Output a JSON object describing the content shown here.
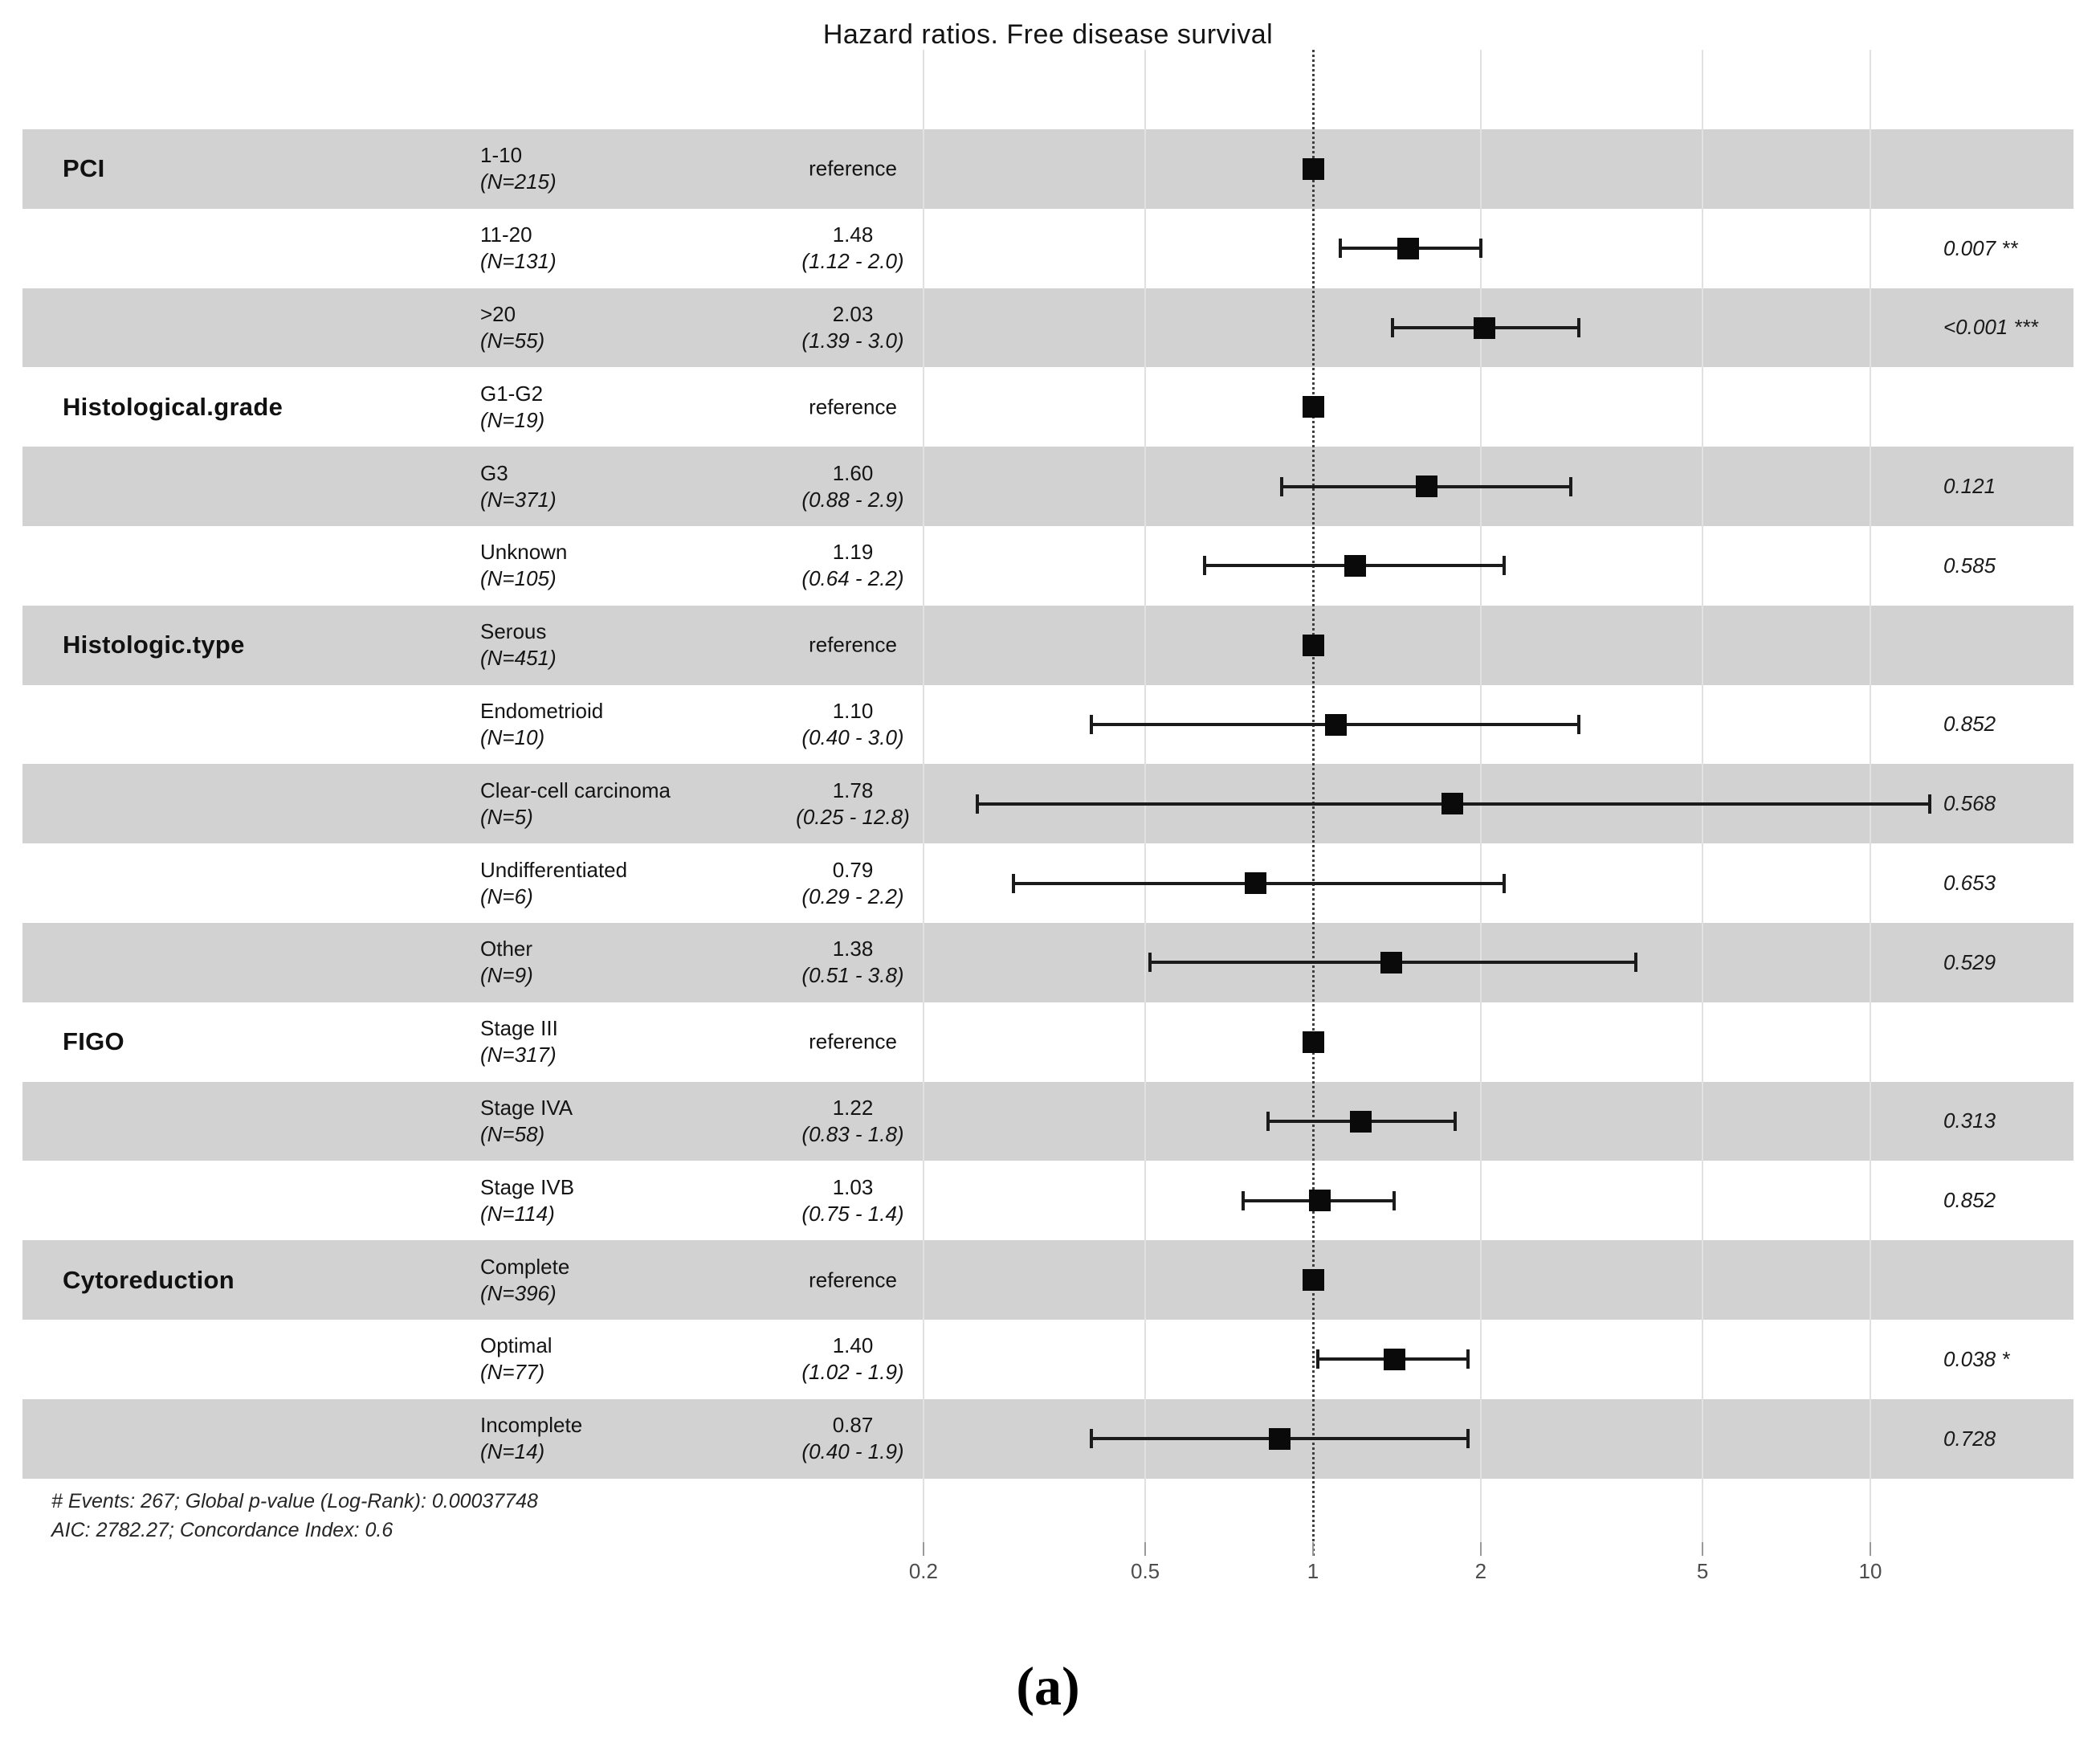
{
  "title": "Hazard ratios. Free disease survival",
  "caption": "(a)",
  "footer": {
    "line1": "# Events: 267; Global p-value (Log-Rank): 0.00037748",
    "line2": "AIC: 2782.27; Concordance Index: 0.6"
  },
  "axis": {
    "scale": "log10",
    "tick_values": [
      0.2,
      0.5,
      1,
      2,
      5,
      10
    ],
    "tick_labels": [
      "0.2",
      "0.5",
      "1",
      "2",
      "5",
      "10"
    ],
    "reference_line": 1
  },
  "colors": {
    "band_shade": "#d2d2d2",
    "marker": "#0a0a0a",
    "grid": "#e1e1e1",
    "reference_dotted": "#3f3f3f",
    "tick_text": "#4d4d4d",
    "text": "#141414"
  },
  "chart_data": {
    "type": "forest",
    "x_scale": "log10",
    "x_ticks": [
      0.2,
      0.5,
      1,
      2,
      5,
      10
    ],
    "reference_value": 1,
    "rows": [
      {
        "group": "PCI",
        "level": "1-10",
        "n": "(N=215)",
        "estimate": "reference",
        "ci_text": "",
        "hr": 1.0,
        "low": null,
        "high": null,
        "p": "",
        "shaded": true
      },
      {
        "group": "",
        "level": "11-20",
        "n": "(N=131)",
        "estimate": "1.48",
        "ci_text": "(1.12 -  2.0)",
        "hr": 1.48,
        "low": 1.12,
        "high": 2.0,
        "p": "0.007 **",
        "shaded": false
      },
      {
        "group": "",
        "level": ">20",
        "n": "(N=55)",
        "estimate": "2.03",
        "ci_text": "(1.39 -  3.0)",
        "hr": 2.03,
        "low": 1.39,
        "high": 3.0,
        "p": "<0.001 ***",
        "shaded": true
      },
      {
        "group": "Histological.grade",
        "level": "G1-G2",
        "n": "(N=19)",
        "estimate": "reference",
        "ci_text": "",
        "hr": 1.0,
        "low": null,
        "high": null,
        "p": "",
        "shaded": false
      },
      {
        "group": "",
        "level": "G3",
        "n": "(N=371)",
        "estimate": "1.60",
        "ci_text": "(0.88 -  2.9)",
        "hr": 1.6,
        "low": 0.88,
        "high": 2.9,
        "p": "0.121",
        "shaded": true
      },
      {
        "group": "",
        "level": "Unknown",
        "n": "(N=105)",
        "estimate": "1.19",
        "ci_text": "(0.64 -  2.2)",
        "hr": 1.19,
        "low": 0.64,
        "high": 2.2,
        "p": "0.585",
        "shaded": false
      },
      {
        "group": "Histologic.type",
        "level": "Serous",
        "n": "(N=451)",
        "estimate": "reference",
        "ci_text": "",
        "hr": 1.0,
        "low": null,
        "high": null,
        "p": "",
        "shaded": true
      },
      {
        "group": "",
        "level": "Endometrioid",
        "n": "(N=10)",
        "estimate": "1.10",
        "ci_text": "(0.40 -  3.0)",
        "hr": 1.1,
        "low": 0.4,
        "high": 3.0,
        "p": "0.852",
        "shaded": false
      },
      {
        "group": "",
        "level": "Clear-cell carcinoma",
        "n": "(N=5)",
        "estimate": "1.78",
        "ci_text": "(0.25 - 12.8)",
        "hr": 1.78,
        "low": 0.25,
        "high": 12.8,
        "p": "0.568",
        "shaded": true
      },
      {
        "group": "",
        "level": "Undifferentiated",
        "n": "(N=6)",
        "estimate": "0.79",
        "ci_text": "(0.29 -  2.2)",
        "hr": 0.79,
        "low": 0.29,
        "high": 2.2,
        "p": "0.653",
        "shaded": false
      },
      {
        "group": "",
        "level": "Other",
        "n": "(N=9)",
        "estimate": "1.38",
        "ci_text": "(0.51 -  3.8)",
        "hr": 1.38,
        "low": 0.51,
        "high": 3.8,
        "p": "0.529",
        "shaded": true
      },
      {
        "group": "FIGO",
        "level": "Stage III",
        "n": "(N=317)",
        "estimate": "reference",
        "ci_text": "",
        "hr": 1.0,
        "low": null,
        "high": null,
        "p": "",
        "shaded": false
      },
      {
        "group": "",
        "level": "Stage IVA",
        "n": "(N=58)",
        "estimate": "1.22",
        "ci_text": "(0.83 -  1.8)",
        "hr": 1.22,
        "low": 0.83,
        "high": 1.8,
        "p": "0.313",
        "shaded": true
      },
      {
        "group": "",
        "level": "Stage IVB",
        "n": "(N=114)",
        "estimate": "1.03",
        "ci_text": "(0.75 -  1.4)",
        "hr": 1.03,
        "low": 0.75,
        "high": 1.4,
        "p": "0.852",
        "shaded": false
      },
      {
        "group": "Cytoreduction",
        "level": "Complete",
        "n": "(N=396)",
        "estimate": "reference",
        "ci_text": "",
        "hr": 1.0,
        "low": null,
        "high": null,
        "p": "",
        "shaded": true
      },
      {
        "group": "",
        "level": "Optimal",
        "n": "(N=77)",
        "estimate": "1.40",
        "ci_text": "(1.02 -  1.9)",
        "hr": 1.4,
        "low": 1.02,
        "high": 1.9,
        "p": "0.038 *",
        "shaded": false
      },
      {
        "group": "",
        "level": "Incomplete",
        "n": "(N=14)",
        "estimate": "0.87",
        "ci_text": "(0.40 -  1.9)",
        "hr": 0.87,
        "low": 0.4,
        "high": 1.9,
        "p": "0.728",
        "shaded": true
      }
    ]
  }
}
